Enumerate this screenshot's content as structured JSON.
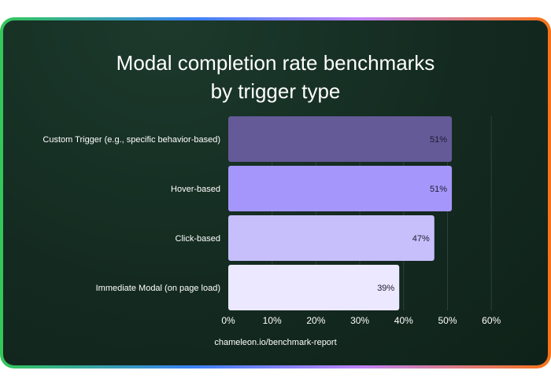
{
  "title": "Modal completion rate benchmarks\nby trigger type",
  "source": "chameleon.io/benchmark-report",
  "colors": {
    "background": "#142a20",
    "text": "#ffffff",
    "bar_label_text": "#1e1b2e",
    "gridline": "#2b4237"
  },
  "chart_data": {
    "type": "bar",
    "orientation": "horizontal",
    "categories": [
      "Custom Trigger (e.g., specific behavior-based)",
      "Hover-based",
      "Click-based",
      "Immediate Modal (on page load)"
    ],
    "values": [
      51,
      51,
      47,
      39
    ],
    "value_labels": [
      "51%",
      "51%",
      "47%",
      "39%"
    ],
    "bar_colors": [
      "#645a98",
      "#a596fb",
      "#c7bffc",
      "#ece8ff"
    ],
    "xlim": [
      0,
      60
    ],
    "xticks": [
      0,
      10,
      20,
      30,
      40,
      50,
      60
    ],
    "xtick_labels": [
      "0%",
      "10%",
      "20%",
      "30%",
      "40%",
      "50%",
      "60%"
    ],
    "grid": "vertical"
  }
}
